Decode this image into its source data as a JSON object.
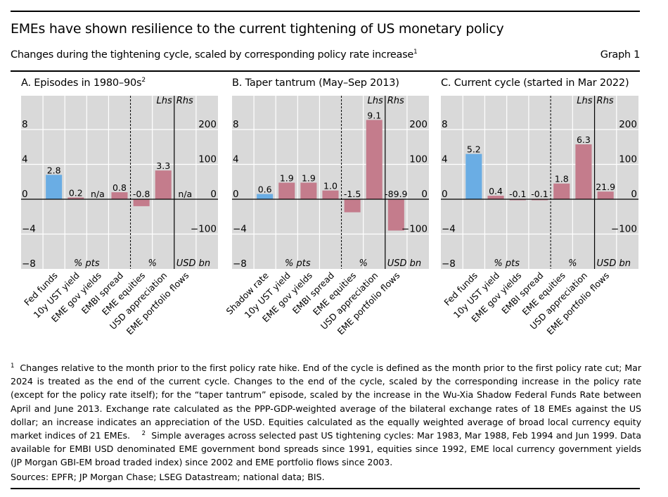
{
  "header": {
    "title": "EMEs have shown resilience to the current tightening of US monetary policy",
    "subtitle": "Changes during the tightening cycle, scaled by corresponding policy rate increase",
    "subtitle_sup": "1",
    "graph_number": "Graph 1"
  },
  "colors": {
    "policy_rate_bar": "#6aade4",
    "other_bar": "#c47c8c",
    "plot_background": "#d9d9d9",
    "gridline": "#ffffff",
    "axis": "#000000"
  },
  "chart_data": [
    {
      "type": "bar",
      "title": "A. Episodes in 1980–90s",
      "title_sup": "2",
      "categories": [
        "Fed funds",
        "10y UST yield",
        "EME gov yields",
        "EMBI spread",
        "EME equities",
        "USD appreciation",
        "EME portfolio flows"
      ],
      "values": [
        2.8,
        0.2,
        null,
        0.8,
        -0.8,
        3.3,
        null
      ],
      "value_labels": [
        "2.8",
        "0.2",
        "n/a",
        "0.8",
        "-0.8",
        "3.3",
        "n/a"
      ],
      "axis_side": [
        "lhs",
        "lhs",
        "lhs",
        "lhs",
        "lhs",
        "lhs",
        "rhs"
      ],
      "ylim_lhs": [
        -8,
        8
      ],
      "yticks_lhs": [
        "8",
        "4",
        "0",
        "−4",
        "−8"
      ],
      "ylim_rhs": [
        -200,
        200
      ],
      "yticks_rhs": [
        "200",
        "100",
        "0",
        "−100"
      ],
      "unit_labels": [
        "% pts",
        "%",
        "USD bn"
      ],
      "axis_labels": [
        "Lhs",
        "Rhs"
      ],
      "grid": true
    },
    {
      "type": "bar",
      "title": "B. Taper tantrum (May–Sep 2013)",
      "title_sup": "",
      "categories": [
        "Shadow rate",
        "10y UST yield",
        "EME gov yields",
        "EMBI spread",
        "EME equities",
        "USD appreciation",
        "EME portfolio flows"
      ],
      "values": [
        0.6,
        1.9,
        1.9,
        1.0,
        -1.5,
        9.1,
        -89.9
      ],
      "value_labels": [
        "0.6",
        "1.9",
        "1.9",
        "1.0",
        "-1.5",
        "9.1",
        "-89.9"
      ],
      "axis_side": [
        "lhs",
        "lhs",
        "lhs",
        "lhs",
        "lhs",
        "lhs",
        "rhs"
      ],
      "ylim_lhs": [
        -8,
        8
      ],
      "yticks_lhs": [
        "8",
        "4",
        "0",
        "−4",
        "−8"
      ],
      "ylim_rhs": [
        -200,
        200
      ],
      "yticks_rhs": [
        "200",
        "100",
        "0",
        "−100"
      ],
      "unit_labels": [
        "% pts",
        "%",
        "USD bn"
      ],
      "axis_labels": [
        "Lhs",
        "Rhs"
      ],
      "grid": true
    },
    {
      "type": "bar",
      "title": "C. Current cycle (started in Mar 2022)",
      "title_sup": "",
      "categories": [
        "Fed funds",
        "10y UST yield",
        "EME gov yields",
        "EMBI spread",
        "EME equities",
        "USD appreciation",
        "EME portfolio flows"
      ],
      "values": [
        5.2,
        0.4,
        -0.1,
        -0.1,
        1.8,
        6.3,
        21.9
      ],
      "value_labels": [
        "5.2",
        "0.4",
        "-0.1",
        "-0.1",
        "1.8",
        "6.3",
        "21.9"
      ],
      "axis_side": [
        "lhs",
        "lhs",
        "lhs",
        "lhs",
        "lhs",
        "lhs",
        "rhs"
      ],
      "ylim_lhs": [
        -8,
        8
      ],
      "yticks_lhs": [
        "8",
        "4",
        "0",
        "−4",
        "−8"
      ],
      "ylim_rhs": [
        -200,
        200
      ],
      "yticks_rhs": [
        "200",
        "100",
        "0",
        "−100"
      ],
      "unit_labels": [
        "% pts",
        "%",
        "USD bn"
      ],
      "axis_labels": [
        "Lhs",
        "Rhs"
      ],
      "grid": true
    }
  ],
  "footnotes": {
    "note1_marker": "1",
    "note1": "Changes relative to the month prior to the first policy rate hike. End of the cycle is defined as the month prior to the first policy rate cut; Mar 2024 is treated as the end of the current cycle. Changes to the end of the cycle, scaled by the corresponding increase in the policy rate (except for the policy rate itself); for the “taper tantrum” episode, scaled by the increase in the Wu-Xia Shadow Federal Funds Rate between April and June 2013. Exchange rate calculated as the PPP-GDP-weighted average of the bilateral exchange rates of 18 EMEs against the US dollar; an increase indicates an appreciation of the USD. Equities calculated as the equally weighted average of broad local currency equity market indices of 21 EMEs.",
    "note2_marker": "2",
    "note2": "Simple averages across selected past US tightening cycles: Mar 1983, Mar 1988, Feb 1994 and Jun 1999. Data available for EMBI USD denominated EME government bond spreads since 1991, equities since 1992, EME local currency government yields (JP Morgan GBI-EM broad traded index) since 2002 and EME portfolio flows since 2003.",
    "sources": "Sources: EPFR; JP Morgan Chase; LSEG Datastream; national data; BIS."
  }
}
